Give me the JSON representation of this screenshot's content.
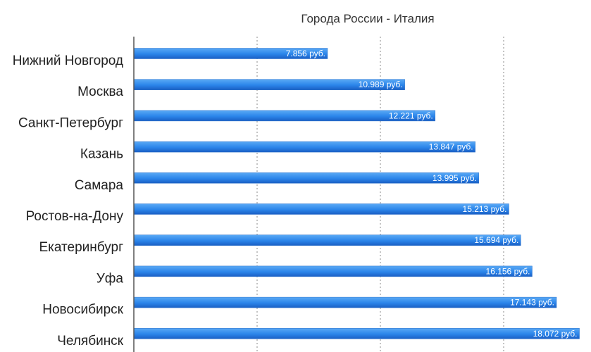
{
  "chart_data": {
    "type": "bar",
    "orientation": "horizontal",
    "title": "Города России - Италия",
    "categories": [
      "Нижний Новгород",
      "Москва",
      "Санкт-Петербург",
      "Казань",
      "Самара",
      "Ростов-на-Дону",
      "Екатеринбург",
      "Уфа",
      "Новосибирск",
      "Челябинск"
    ],
    "values": [
      7856,
      10989,
      12221,
      13847,
      13995,
      15213,
      15694,
      16156,
      17143,
      18072
    ],
    "value_labels": [
      "7.856 руб.",
      "10.989 руб.",
      "12.221 руб.",
      "13.847 руб.",
      "13.995 руб.",
      "15.213 руб.",
      "15.694 руб.",
      "16.156 руб.",
      "17.143 руб.",
      "18.072 руб."
    ],
    "xlim": [
      0,
      20000
    ],
    "x_gridlines": [
      5000,
      10000,
      15000
    ],
    "grid": true,
    "legend": "none",
    "colors": {
      "bar_top": "#5aa9f5",
      "bar_mid": "#2b85ea",
      "bar_bottom": "#1a5fc4"
    }
  }
}
